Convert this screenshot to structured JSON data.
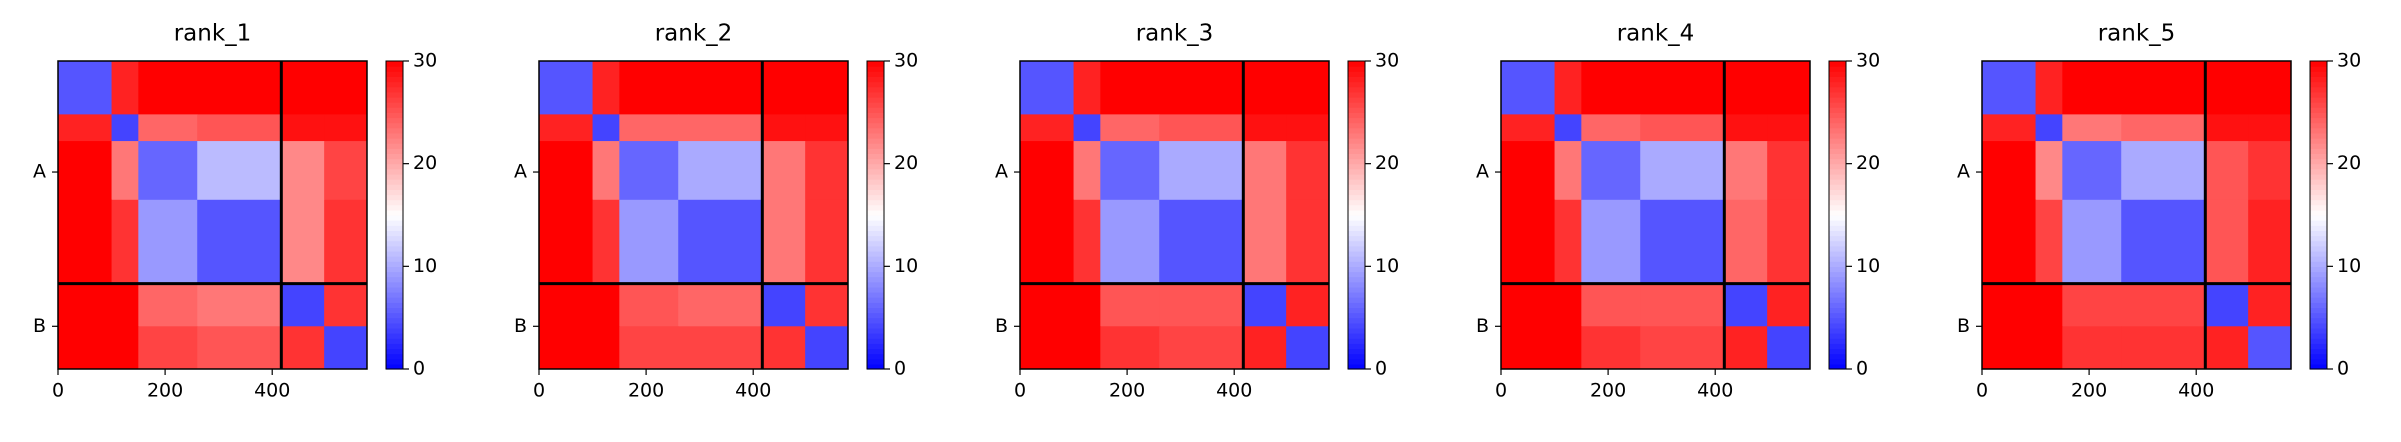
{
  "chart_data": [
    {
      "type": "heatmap",
      "title": "rank_1",
      "xlim": [
        0,
        577
      ],
      "ylim": [
        577,
        0
      ],
      "xticks": [
        0,
        200,
        400
      ],
      "yticks": [
        {
          "value": 208,
          "label": "A"
        },
        {
          "value": 497,
          "label": "B"
        }
      ],
      "chain_breaks": [
        417
      ],
      "edges": [
        0,
        100,
        150,
        260,
        417,
        497,
        577
      ],
      "matrix": [
        [
          5,
          28,
          30,
          30,
          30,
          30
        ],
        [
          28,
          4,
          24,
          25,
          29,
          29
        ],
        [
          30,
          23,
          6,
          11,
          22,
          26
        ],
        [
          30,
          27,
          9,
          5,
          22,
          27
        ],
        [
          30,
          30,
          24,
          23,
          4,
          27
        ],
        [
          30,
          30,
          26,
          25,
          27,
          4
        ]
      ],
      "colormap": "bwr",
      "clim": [
        0,
        30
      ],
      "cticks": [
        0,
        10,
        20,
        30
      ]
    },
    {
      "type": "heatmap",
      "title": "rank_2",
      "xlim": [
        0,
        577
      ],
      "ylim": [
        577,
        0
      ],
      "xticks": [
        0,
        200,
        400
      ],
      "yticks": [
        {
          "value": 208,
          "label": "A"
        },
        {
          "value": 497,
          "label": "B"
        }
      ],
      "chain_breaks": [
        417
      ],
      "edges": [
        0,
        100,
        150,
        260,
        417,
        497,
        577
      ],
      "matrix": [
        [
          5,
          28,
          30,
          30,
          30,
          30
        ],
        [
          28,
          4,
          24,
          24,
          29,
          29
        ],
        [
          30,
          23,
          6,
          10,
          23,
          27
        ],
        [
          30,
          27,
          9,
          5,
          23,
          27
        ],
        [
          30,
          30,
          25,
          24,
          4,
          27
        ],
        [
          30,
          30,
          26,
          26,
          27,
          4
        ]
      ],
      "colormap": "bwr",
      "clim": [
        0,
        30
      ],
      "cticks": [
        0,
        10,
        20,
        30
      ]
    },
    {
      "type": "heatmap",
      "title": "rank_3",
      "xlim": [
        0,
        577
      ],
      "ylim": [
        577,
        0
      ],
      "xticks": [
        0,
        200,
        400
      ],
      "yticks": [
        {
          "value": 208,
          "label": "A"
        },
        {
          "value": 497,
          "label": "B"
        }
      ],
      "chain_breaks": [
        417
      ],
      "edges": [
        0,
        100,
        150,
        260,
        417,
        497,
        577
      ],
      "matrix": [
        [
          5,
          28,
          30,
          30,
          30,
          30
        ],
        [
          28,
          4,
          24,
          25,
          29,
          29
        ],
        [
          30,
          23,
          6,
          10,
          23,
          27
        ],
        [
          30,
          27,
          9,
          5,
          23,
          27
        ],
        [
          30,
          30,
          25,
          25,
          4,
          28
        ],
        [
          30,
          30,
          27,
          26,
          28,
          4
        ]
      ],
      "colormap": "bwr",
      "clim": [
        0,
        30
      ],
      "cticks": [
        0,
        10,
        20,
        30
      ]
    },
    {
      "type": "heatmap",
      "title": "rank_4",
      "xlim": [
        0,
        577
      ],
      "ylim": [
        577,
        0
      ],
      "xticks": [
        0,
        200,
        400
      ],
      "yticks": [
        {
          "value": 208,
          "label": "A"
        },
        {
          "value": 497,
          "label": "B"
        }
      ],
      "chain_breaks": [
        417
      ],
      "edges": [
        0,
        100,
        150,
        260,
        417,
        497,
        577
      ],
      "matrix": [
        [
          5,
          28,
          30,
          30,
          30,
          30
        ],
        [
          28,
          4,
          24,
          25,
          29,
          29
        ],
        [
          30,
          23,
          6,
          10,
          23,
          27
        ],
        [
          30,
          27,
          9,
          5,
          24,
          27
        ],
        [
          30,
          30,
          25,
          25,
          4,
          28
        ],
        [
          30,
          30,
          27,
          26,
          28,
          4
        ]
      ],
      "colormap": "bwr",
      "clim": [
        0,
        30
      ],
      "cticks": [
        0,
        10,
        20,
        30
      ]
    },
    {
      "type": "heatmap",
      "title": "rank_5",
      "xlim": [
        0,
        577
      ],
      "ylim": [
        577,
        0
      ],
      "xticks": [
        0,
        200,
        400
      ],
      "yticks": [
        {
          "value": 208,
          "label": "A"
        },
        {
          "value": 497,
          "label": "B"
        }
      ],
      "chain_breaks": [
        417
      ],
      "edges": [
        0,
        100,
        150,
        260,
        417,
        497,
        577
      ],
      "matrix": [
        [
          5,
          28,
          30,
          30,
          30,
          30
        ],
        [
          28,
          4,
          23,
          24,
          29,
          29
        ],
        [
          30,
          22,
          6,
          10,
          25,
          27
        ],
        [
          30,
          26,
          9,
          5,
          25,
          28
        ],
        [
          30,
          30,
          26,
          26,
          4,
          28
        ],
        [
          30,
          30,
          27,
          27,
          28,
          5
        ]
      ],
      "colormap": "bwr",
      "clim": [
        0,
        30
      ],
      "cticks": [
        0,
        10,
        20,
        30
      ]
    }
  ]
}
